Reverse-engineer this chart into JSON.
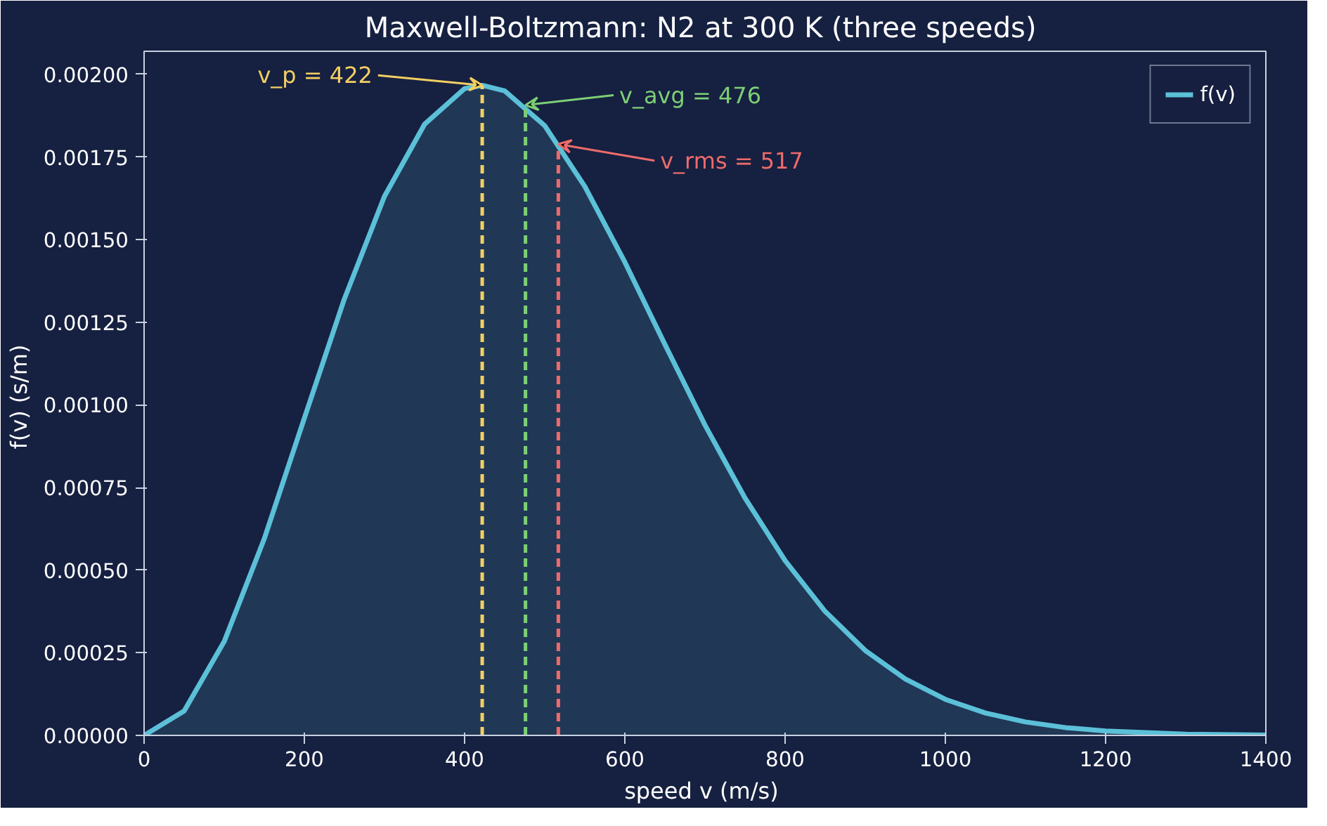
{
  "chart_data": {
    "type": "area",
    "title": "Maxwell-Boltzmann: N2 at 300 K  (three speeds)",
    "xlabel": "speed v  (m/s)",
    "ylabel": "f(v)  (s/m)",
    "x": [
      0,
      50,
      100,
      150,
      200,
      250,
      300,
      350,
      400,
      422,
      450,
      500,
      550,
      600,
      650,
      700,
      750,
      800,
      850,
      900,
      950,
      1000,
      1050,
      1100,
      1150,
      1200,
      1300,
      1400
    ],
    "series": [
      {
        "name": "f(v)",
        "color": "#5bc0d8",
        "values": [
          0,
          7.4e-05,
          0.000284,
          0.000595,
          0.00096,
          0.001321,
          0.001631,
          0.001849,
          0.001957,
          0.001967,
          0.00195,
          0.001845,
          0.001661,
          0.001432,
          0.001183,
          0.000939,
          0.000718,
          0.000529,
          0.000375,
          0.000257,
          0.000171,
          0.000109,
          6.78e-05,
          4.07e-05,
          2.36e-05,
          1.33e-05,
          3.8e-06,
          1e-06
        ]
      }
    ],
    "ref_lines": [
      {
        "axis": "x",
        "value": 422,
        "color": "#f2cf63",
        "line_style": "dashed"
      },
      {
        "axis": "x",
        "value": 476,
        "color": "#7dcf75",
        "line_style": "dashed"
      },
      {
        "axis": "x",
        "value": 517,
        "color": "#ee6b6b",
        "line_style": "dashed"
      }
    ],
    "annotations": [
      {
        "text": "v_p = 422",
        "x": 422,
        "y": 0.001967
      },
      {
        "text": "v_avg = 476",
        "x": 476,
        "y": 0.001907
      },
      {
        "text": "v_rms = 517",
        "x": 517,
        "y": 0.001789
      }
    ],
    "xlim": [
      0,
      1400
    ],
    "ylim": [
      0,
      0.00207
    ],
    "xticks": [
      0,
      200,
      400,
      600,
      800,
      1000,
      1200,
      1400
    ],
    "yticks": [
      {
        "value": 0,
        "label": "0.00000"
      },
      {
        "value": 0.00025,
        "label": "0.00025"
      },
      {
        "value": 0.0005,
        "label": "0.00050"
      },
      {
        "value": 0.00075,
        "label": "0.00075"
      },
      {
        "value": 0.001,
        "label": "0.00100"
      },
      {
        "value": 0.00125,
        "label": "0.00125"
      },
      {
        "value": 0.0015,
        "label": "0.00150"
      },
      {
        "value": 0.00175,
        "label": "0.00175"
      },
      {
        "value": 0.002,
        "label": "0.00200"
      }
    ],
    "grid": false,
    "legend": "top right",
    "line_style": "solid"
  }
}
